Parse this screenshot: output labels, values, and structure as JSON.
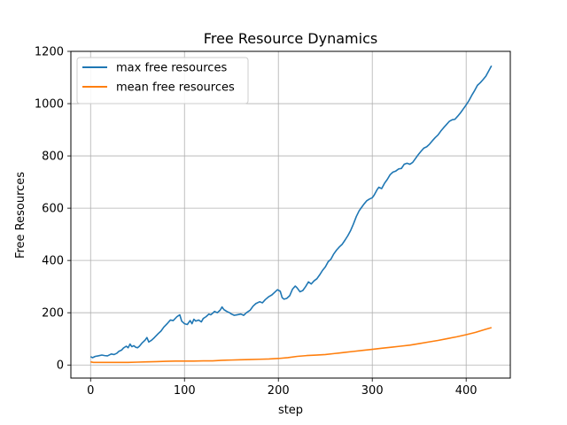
{
  "chart_data": {
    "type": "line",
    "title": "Free Resource Dynamics",
    "xlabel": "step",
    "ylabel": "Free Resources",
    "xlim": [
      -21,
      447
    ],
    "ylim": [
      -50,
      1200
    ],
    "xticks": [
      0,
      100,
      200,
      300,
      400
    ],
    "yticks": [
      0,
      200,
      400,
      600,
      800,
      1000,
      1200
    ],
    "grid": true,
    "legend_position": "top-left",
    "series": [
      {
        "name": "max free resources",
        "color": "#1f77b4",
        "points": [
          [
            0,
            32
          ],
          [
            2,
            28
          ],
          [
            5,
            33
          ],
          [
            8,
            35
          ],
          [
            12,
            38
          ],
          [
            15,
            36
          ],
          [
            18,
            35
          ],
          [
            22,
            42
          ],
          [
            25,
            40
          ],
          [
            28,
            45
          ],
          [
            30,
            52
          ],
          [
            33,
            57
          ],
          [
            35,
            65
          ],
          [
            38,
            72
          ],
          [
            40,
            66
          ],
          [
            42,
            80
          ],
          [
            44,
            70
          ],
          [
            46,
            74
          ],
          [
            48,
            68
          ],
          [
            50,
            66
          ],
          [
            52,
            72
          ],
          [
            55,
            85
          ],
          [
            58,
            95
          ],
          [
            60,
            105
          ],
          [
            62,
            88
          ],
          [
            65,
            95
          ],
          [
            68,
            105
          ],
          [
            72,
            120
          ],
          [
            75,
            130
          ],
          [
            78,
            145
          ],
          [
            82,
            160
          ],
          [
            85,
            172
          ],
          [
            88,
            170
          ],
          [
            92,
            185
          ],
          [
            95,
            192
          ],
          [
            97,
            168
          ],
          [
            100,
            158
          ],
          [
            103,
            155
          ],
          [
            106,
            170
          ],
          [
            108,
            158
          ],
          [
            110,
            175
          ],
          [
            112,
            168
          ],
          [
            115,
            172
          ],
          [
            118,
            165
          ],
          [
            120,
            178
          ],
          [
            123,
            185
          ],
          [
            126,
            195
          ],
          [
            128,
            192
          ],
          [
            130,
            198
          ],
          [
            132,
            205
          ],
          [
            135,
            200
          ],
          [
            138,
            210
          ],
          [
            140,
            222
          ],
          [
            142,
            212
          ],
          [
            145,
            205
          ],
          [
            148,
            200
          ],
          [
            150,
            195
          ],
          [
            153,
            190
          ],
          [
            156,
            192
          ],
          [
            160,
            195
          ],
          [
            163,
            190
          ],
          [
            166,
            200
          ],
          [
            170,
            210
          ],
          [
            173,
            225
          ],
          [
            176,
            235
          ],
          [
            180,
            242
          ],
          [
            183,
            238
          ],
          [
            186,
            250
          ],
          [
            190,
            262
          ],
          [
            193,
            268
          ],
          [
            196,
            278
          ],
          [
            199,
            288
          ],
          [
            202,
            282
          ],
          [
            204,
            258
          ],
          [
            206,
            252
          ],
          [
            209,
            255
          ],
          [
            212,
            265
          ],
          [
            215,
            290
          ],
          [
            218,
            302
          ],
          [
            220,
            295
          ],
          [
            223,
            280
          ],
          [
            226,
            285
          ],
          [
            229,
            300
          ],
          [
            232,
            318
          ],
          [
            235,
            310
          ],
          [
            238,
            322
          ],
          [
            241,
            330
          ],
          [
            244,
            345
          ],
          [
            247,
            362
          ],
          [
            250,
            375
          ],
          [
            253,
            395
          ],
          [
            256,
            405
          ],
          [
            259,
            425
          ],
          [
            262,
            440
          ],
          [
            265,
            452
          ],
          [
            268,
            462
          ],
          [
            271,
            478
          ],
          [
            274,
            495
          ],
          [
            277,
            515
          ],
          [
            280,
            540
          ],
          [
            283,
            568
          ],
          [
            286,
            590
          ],
          [
            289,
            605
          ],
          [
            291,
            615
          ],
          [
            294,
            628
          ],
          [
            297,
            635
          ],
          [
            300,
            640
          ],
          [
            302,
            650
          ],
          [
            305,
            670
          ],
          [
            307,
            680
          ],
          [
            310,
            675
          ],
          [
            313,
            695
          ],
          [
            316,
            710
          ],
          [
            319,
            728
          ],
          [
            322,
            738
          ],
          [
            325,
            742
          ],
          [
            328,
            750
          ],
          [
            331,
            752
          ],
          [
            334,
            768
          ],
          [
            337,
            772
          ],
          [
            340,
            768
          ],
          [
            343,
            775
          ],
          [
            346,
            790
          ],
          [
            349,
            805
          ],
          [
            352,
            818
          ],
          [
            355,
            830
          ],
          [
            358,
            835
          ],
          [
            361,
            845
          ],
          [
            364,
            858
          ],
          [
            367,
            870
          ],
          [
            370,
            880
          ],
          [
            373,
            895
          ],
          [
            376,
            908
          ],
          [
            379,
            920
          ],
          [
            382,
            932
          ],
          [
            385,
            938
          ],
          [
            388,
            940
          ],
          [
            391,
            952
          ],
          [
            394,
            965
          ],
          [
            397,
            980
          ],
          [
            400,
            995
          ],
          [
            403,
            1012
          ],
          [
            406,
            1032
          ],
          [
            409,
            1050
          ],
          [
            412,
            1070
          ],
          [
            415,
            1080
          ],
          [
            418,
            1092
          ],
          [
            421,
            1105
          ],
          [
            424,
            1125
          ],
          [
            427,
            1145
          ]
        ]
      },
      {
        "name": "mean free resources",
        "color": "#ff7f0e",
        "points": [
          [
            0,
            12
          ],
          [
            3,
            10
          ],
          [
            10,
            10
          ],
          [
            20,
            10
          ],
          [
            30,
            10
          ],
          [
            40,
            10
          ],
          [
            50,
            11
          ],
          [
            60,
            12
          ],
          [
            70,
            13
          ],
          [
            80,
            14
          ],
          [
            90,
            15
          ],
          [
            100,
            15
          ],
          [
            110,
            15
          ],
          [
            120,
            16
          ],
          [
            130,
            16
          ],
          [
            140,
            18
          ],
          [
            150,
            19
          ],
          [
            160,
            20
          ],
          [
            170,
            21
          ],
          [
            180,
            22
          ],
          [
            190,
            23
          ],
          [
            200,
            25
          ],
          [
            210,
            28
          ],
          [
            220,
            33
          ],
          [
            230,
            36
          ],
          [
            240,
            38
          ],
          [
            250,
            40
          ],
          [
            260,
            44
          ],
          [
            270,
            48
          ],
          [
            280,
            52
          ],
          [
            290,
            56
          ],
          [
            300,
            60
          ],
          [
            310,
            64
          ],
          [
            320,
            68
          ],
          [
            330,
            72
          ],
          [
            340,
            76
          ],
          [
            350,
            82
          ],
          [
            360,
            88
          ],
          [
            370,
            94
          ],
          [
            380,
            101
          ],
          [
            390,
            108
          ],
          [
            400,
            116
          ],
          [
            410,
            125
          ],
          [
            420,
            136
          ],
          [
            427,
            143
          ]
        ]
      }
    ]
  }
}
